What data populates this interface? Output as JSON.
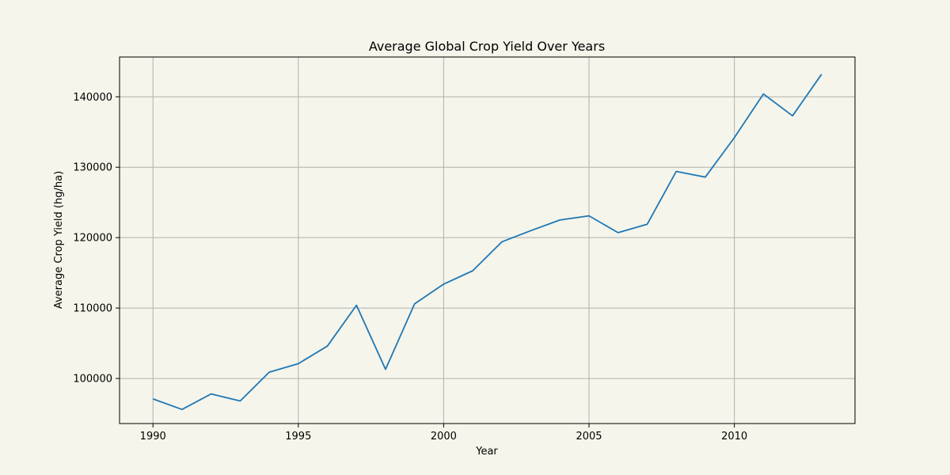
{
  "chart_data": {
    "type": "line",
    "title": "Average Global Crop Yield Over Years",
    "xlabel": "Year",
    "ylabel": "Average Crop Yield (hg/ha)",
    "xlim": [
      1988.85,
      2014.15
    ],
    "ylim": [
      93600,
      145650
    ],
    "xticks": [
      1990,
      1995,
      2000,
      2005,
      2010
    ],
    "yticks": [
      100000,
      110000,
      120000,
      130000,
      140000
    ],
    "grid": true,
    "series": [
      {
        "color": "#1f77b4",
        "x": [
          1990,
          1991,
          1992,
          1993,
          1994,
          1995,
          1996,
          1997,
          1998,
          1999,
          2000,
          2001,
          2002,
          2003,
          2004,
          2005,
          2006,
          2007,
          2008,
          2009,
          2010,
          2011,
          2012,
          2013
        ],
        "values": [
          97100,
          95600,
          97800,
          96800,
          100900,
          102100,
          104600,
          110400,
          101300,
          110600,
          113400,
          115300,
          119400,
          121000,
          122500,
          123100,
          120700,
          121900,
          129400,
          128600,
          134200,
          140400,
          137300,
          143200
        ]
      }
    ]
  },
  "colors": {
    "background": "#f5f5eb",
    "grid": "#b0b0b0",
    "axes": "#000000"
  }
}
